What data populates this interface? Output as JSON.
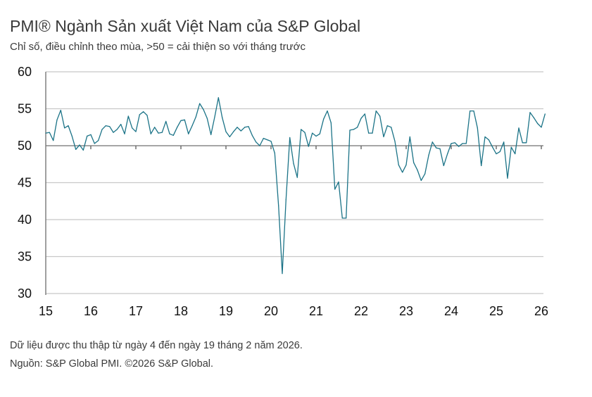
{
  "chart_data": {
    "type": "line",
    "title": "PMI® Ngành Sản xuất Việt Nam của S&P Global",
    "subtitle": "Chỉ số, điều chỉnh theo mùa, >50 = cải thiện so với tháng trước",
    "xlabel": "",
    "ylabel": "",
    "ylim": [
      30,
      60
    ],
    "yticks": [
      "60",
      "55",
      "50",
      "45",
      "40",
      "35",
      "30"
    ],
    "xticks": [
      "15",
      "16",
      "17",
      "18",
      "19",
      "20",
      "21",
      "22",
      "23",
      "24",
      "25",
      "26"
    ],
    "x_start": "2015-01",
    "x_end": "2026-02",
    "frequency": "monthly",
    "grid": true,
    "line_color": "#1b7387",
    "values": [
      51.7,
      51.8,
      50.7,
      53.5,
      54.8,
      52.4,
      52.7,
      51.3,
      49.5,
      50.1,
      49.4,
      51.3,
      51.5,
      50.3,
      50.7,
      52.2,
      52.7,
      52.6,
      51.8,
      52.2,
      52.9,
      51.6,
      54.0,
      52.4,
      51.9,
      54.2,
      54.6,
      54.1,
      51.6,
      52.5,
      51.7,
      51.8,
      53.3,
      51.6,
      51.4,
      52.5,
      53.4,
      53.5,
      51.6,
      52.7,
      53.9,
      55.7,
      54.9,
      53.7,
      51.5,
      53.9,
      56.5,
      53.8,
      51.9,
      51.2,
      51.9,
      52.5,
      52.0,
      52.5,
      52.6,
      51.4,
      50.5,
      50.0,
      51.0,
      50.8,
      50.6,
      49.0,
      41.9,
      32.7,
      42.7,
      51.1,
      47.6,
      45.7,
      52.2,
      51.8,
      49.9,
      51.7,
      51.3,
      51.6,
      53.6,
      54.7,
      53.1,
      44.1,
      45.1,
      40.2,
      40.2,
      52.1,
      52.2,
      52.5,
      53.7,
      54.3,
      51.7,
      51.7,
      54.7,
      54.0,
      51.2,
      52.7,
      52.5,
      50.6,
      47.4,
      46.4,
      47.4,
      51.2,
      47.7,
      46.7,
      45.3,
      46.2,
      48.7,
      50.5,
      49.7,
      49.6,
      47.3,
      48.9,
      50.3,
      50.4,
      49.9,
      50.3,
      50.3,
      54.7,
      54.7,
      52.4,
      47.3,
      51.2,
      50.8,
      49.8,
      48.9,
      49.2,
      50.5,
      45.6,
      49.8,
      48.9,
      52.4,
      50.4,
      50.4,
      54.5,
      53.8,
      53.0,
      52.5,
      54.3
    ]
  },
  "footer": {
    "note": "Dữ liệu được thu thập từ ngày 4 đến ngày 19 tháng 2 năm 2026.",
    "source": "Nguồn: S&P Global PMI. ©2026 S&P Global."
  }
}
